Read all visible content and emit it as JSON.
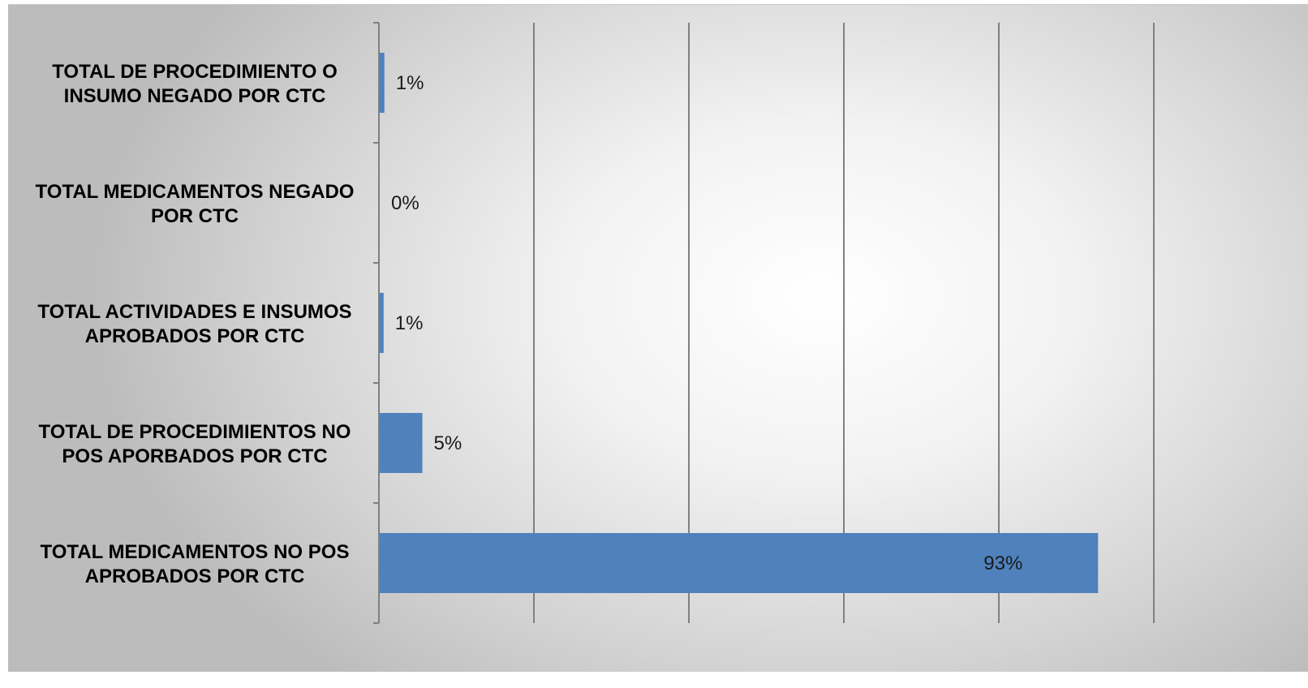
{
  "chart_data": {
    "type": "bar",
    "orientation": "horizontal",
    "categories": [
      "TOTAL DE PROCEDIMIENTO O INSUMO NEGADO POR CTC",
      "TOTAL MEDICAMENTOS NEGADO POR CTC",
      "TOTAL ACTIVIDADES E INSUMOS APROBADOS POR CTC",
      "TOTAL DE PROCEDIMIENTOS NO POS APORBADOS POR CTC",
      "TOTAL MEDICAMENTOS NO POS APROBADOS POR CTC"
    ],
    "category_lines": [
      [
        "TOTAL DE PROCEDIMIENTO O",
        "INSUMO NEGADO POR CTC"
      ],
      [
        "TOTAL MEDICAMENTOS NEGADO",
        "POR CTC"
      ],
      [
        "TOTAL ACTIVIDADES E INSUMOS",
        "APROBADOS POR CTC"
      ],
      [
        "TOTAL DE PROCEDIMIENTOS NO",
        "POS APORBADOS POR CTC"
      ],
      [
        "TOTAL MEDICAMENTOS NO POS",
        "APROBADOS POR CTC"
      ]
    ],
    "values": [
      0.6,
      0,
      0.5,
      5.5,
      92.7
    ],
    "data_labels": [
      "1%",
      "0%",
      "1%",
      "5%",
      "93%"
    ],
    "xlim": [
      0,
      100
    ],
    "x_gridlines": [
      20,
      40,
      60,
      80,
      100
    ],
    "grid": true,
    "legend": "none",
    "bar_color": "#4f81bd",
    "axis_color": "#808080"
  }
}
